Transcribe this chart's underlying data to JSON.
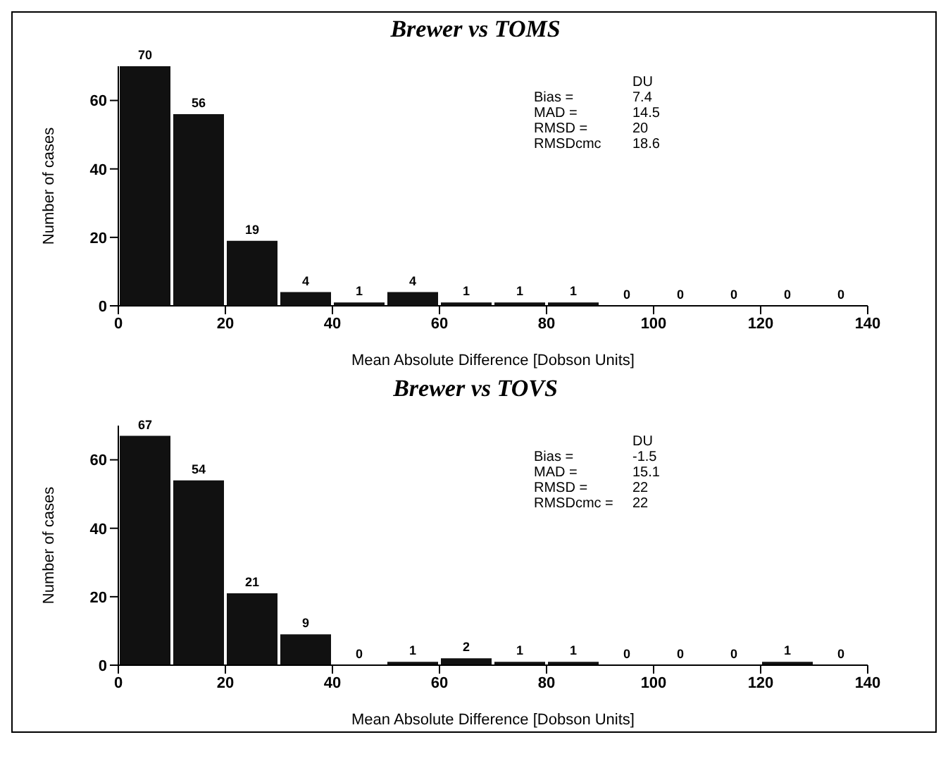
{
  "chart_data": [
    {
      "type": "histogram",
      "title": "Brewer vs TOMS",
      "xlabel": "Mean Absolute Difference [Dobson Units]",
      "ylabel": "Number of cases",
      "bins": [
        0,
        10,
        20,
        30,
        40,
        50,
        60,
        70,
        80,
        90,
        100,
        110,
        120,
        130,
        140
      ],
      "values": [
        70,
        56,
        19,
        4,
        1,
        4,
        1,
        1,
        1,
        0,
        0,
        0,
        0,
        0
      ],
      "color": "#111111",
      "xlim": [
        0,
        140
      ],
      "xticks": [
        0,
        20,
        40,
        60,
        80,
        100,
        120,
        140
      ],
      "ylim": [
        0,
        70
      ],
      "yticks": [
        0,
        20,
        40,
        60
      ],
      "data_labels": true,
      "grid": false,
      "annotations": [
        "DU",
        "Bias =",
        "7.4",
        "MAD =",
        "14.5",
        "RMSD =",
        "20",
        "RMSDcmc",
        "18.6"
      ]
    },
    {
      "type": "histogram",
      "title": "Brewer vs TOVS",
      "xlabel": "Mean Absolute Difference [Dobson Units]",
      "ylabel": "Number of cases",
      "bins": [
        0,
        10,
        20,
        30,
        40,
        50,
        60,
        70,
        80,
        90,
        100,
        110,
        120,
        130,
        140
      ],
      "values": [
        67,
        54,
        21,
        9,
        0,
        1,
        2,
        1,
        1,
        0,
        0,
        0,
        1,
        0
      ],
      "color": "#111111",
      "xlim": [
        0,
        140
      ],
      "xticks": [
        0,
        20,
        40,
        60,
        80,
        100,
        120,
        140
      ],
      "ylim": [
        0,
        70
      ],
      "yticks": [
        0,
        20,
        40,
        60
      ],
      "data_labels": true,
      "grid": false,
      "annotations": [
        "DU",
        "Bias =",
        "-1.5",
        "MAD =",
        "15.1",
        "RMSD =",
        "22",
        "RMSDcmc =",
        "22"
      ]
    }
  ]
}
